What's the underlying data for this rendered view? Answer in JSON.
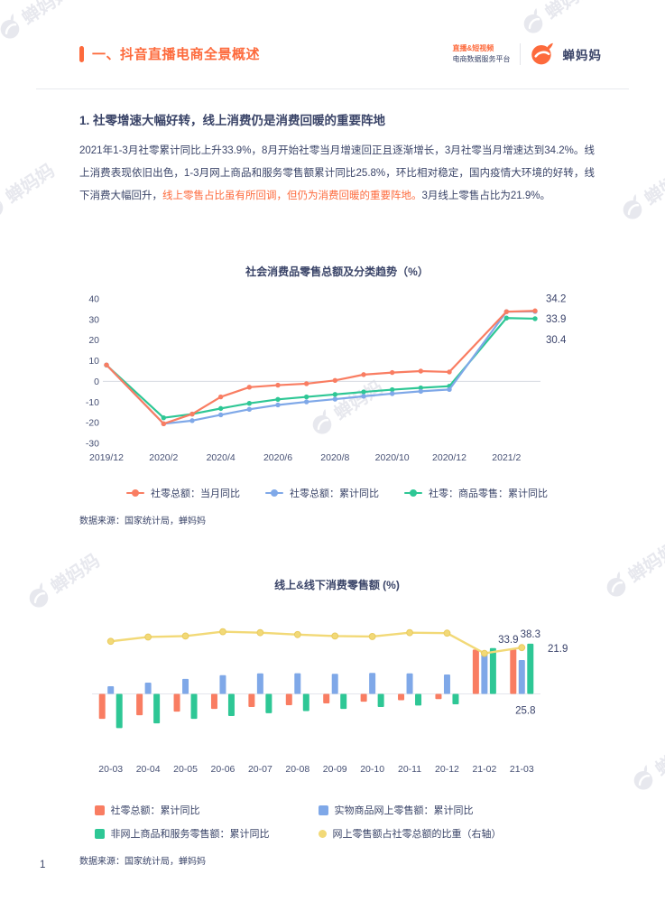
{
  "colors": {
    "accent": "#FD6A3C",
    "navy": "#3A4468",
    "watermark": "#E7E8EE",
    "series_orange": "#F97D62",
    "series_blue": "#7FA8E8",
    "series_green": "#2EC795",
    "series_yellow": "#F2D977"
  },
  "header": {
    "section_title": "一、抖音直播电商全景概述",
    "platform_line1": "直播&短视频",
    "platform_line2": "电商数据服务平台",
    "brand": "蝉妈妈"
  },
  "watermark": {
    "text": "蝉妈妈"
  },
  "section": {
    "heading": "1. 社零增速大幅好转，线上消费仍是消费回暖的重要阵地",
    "para_before": "2021年1-3月社零累计同比上升33.9%，8月开始社零当月增速回正且逐渐增长，3月社零当月增速达到34.2%。线上消费表现依旧出色，1-3月网上商品和服务零售额累计同比25.8%，环比相对稳定，国内疫情大环境的好转，线下消费大幅回升，",
    "para_highlight": "线上零售占比虽有所回调，但仍为消费回暖的重要阵地。",
    "para_after": "3月线上零售占比为21.9%。"
  },
  "footer": {
    "page_number": "1"
  },
  "chart_data": [
    {
      "type": "line",
      "title": "社会消费品零售总额及分类趋势（%）",
      "source": "数据来源：国家统计局，蝉妈妈",
      "ylim": [
        -30,
        40
      ],
      "yticks": [
        40,
        30,
        20,
        10,
        0,
        -10,
        -20,
        -30
      ],
      "x_months": [
        0,
        2,
        3,
        4,
        5,
        6,
        7,
        8,
        9,
        10,
        11,
        12,
        14,
        15
      ],
      "x_tick_months": [
        0,
        2,
        4,
        6,
        8,
        10,
        12,
        14
      ],
      "x_tick_labels": [
        "2019/12",
        "2020/2",
        "2020/4",
        "2020/6",
        "2020/8",
        "2020/10",
        "2020/12",
        "2021/2"
      ],
      "series": [
        {
          "name": "社零总额：当月同比",
          "color": "#F97D62",
          "values": [
            8.0,
            -20.5,
            -15.8,
            -7.5,
            -2.8,
            -1.8,
            -1.1,
            0.5,
            3.3,
            4.3,
            5.0,
            4.6,
            33.8,
            34.2
          ],
          "end_label": "34.2"
        },
        {
          "name": "社零总额：累计同比",
          "color": "#7FA8E8",
          "values": [
            8.0,
            -20.5,
            -19.0,
            -16.2,
            -13.5,
            -11.4,
            -9.9,
            -8.6,
            -7.2,
            -5.9,
            -4.8,
            -3.9,
            33.8,
            33.9
          ],
          "end_label": "33.9"
        },
        {
          "name": "社零：商品零售：累计同比",
          "color": "#2EC795",
          "values": [
            7.9,
            -17.6,
            -15.8,
            -13.1,
            -10.6,
            -8.7,
            -7.5,
            -6.3,
            -5.1,
            -4.0,
            -3.1,
            -2.3,
            30.7,
            30.4
          ],
          "end_label": "30.4"
        }
      ]
    },
    {
      "type": "bar+line",
      "title": "线上&线下消费零售额 (%)",
      "source": "数据来源：国家统计局，蝉妈妈",
      "left_ylim": [
        -45,
        65
      ],
      "right_ylim": [
        0,
        30
      ],
      "categories": [
        "20-03",
        "20-04",
        "20-05",
        "20-06",
        "20-07",
        "20-08",
        "20-09",
        "20-10",
        "20-11",
        "20-12",
        "21-02",
        "21-03"
      ],
      "bar_series": [
        {
          "name": "社零总额：累计同比",
          "color": "#F97D62",
          "values": [
            -19.0,
            -16.2,
            -13.5,
            -11.4,
            -9.9,
            -8.6,
            -7.2,
            -5.9,
            -4.8,
            -3.9,
            33.8,
            33.9
          ]
        },
        {
          "name": "实物商品网上零售额：累计同比",
          "color": "#7FA8E8",
          "values": [
            5.9,
            8.6,
            11.5,
            14.3,
            15.7,
            15.8,
            15.3,
            16.0,
            15.7,
            14.8,
            30.6,
            25.8
          ]
        },
        {
          "name": "非网上商品和服务零售额：累计同比",
          "color": "#2EC795",
          "values": [
            -26.0,
            -22.4,
            -19.0,
            -16.8,
            -14.7,
            -13.0,
            -11.4,
            -9.9,
            -8.8,
            -7.9,
            34.9,
            38.3
          ]
        }
      ],
      "line_series": {
        "name": "网上零售额占社零总额的比重（右轴）",
        "color": "#F2D977",
        "axis": "right",
        "values": [
          23.2,
          24.1,
          24.3,
          25.2,
          25.0,
          24.6,
          24.3,
          24.2,
          25.0,
          24.9,
          20.7,
          21.9
        ]
      },
      "annotations": [
        {
          "text": "33.9",
          "series": "社零总额：累计同比",
          "category": "21-03",
          "placement": "above-left"
        },
        {
          "text": "38.3",
          "series": "非网上商品和服务零售额：累计同比",
          "category": "21-03",
          "placement": "above"
        },
        {
          "text": "21.9",
          "series": "网上零售额占社零总额的比重（右轴）",
          "category": "21-03",
          "placement": "right-axis"
        },
        {
          "text": "25.8",
          "series": "实物商品网上零售额：累计同比",
          "category": "21-03",
          "placement": "below"
        }
      ]
    }
  ]
}
